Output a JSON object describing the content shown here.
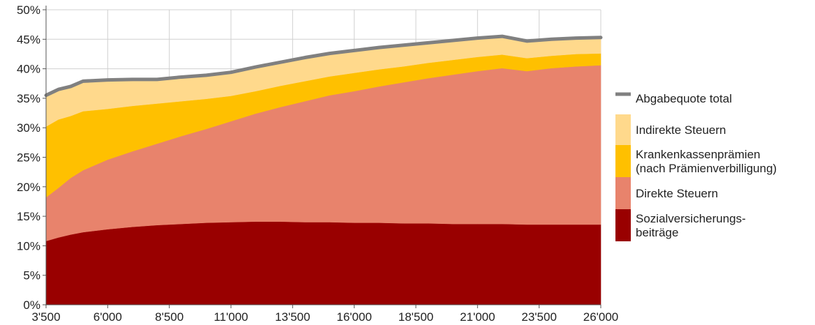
{
  "chart_data": {
    "type": "area",
    "title": "",
    "xlabel": "",
    "ylabel": "",
    "stacked": true,
    "xlim": [
      3500,
      26000
    ],
    "ylim": [
      0,
      50
    ],
    "grid": true,
    "legend_position": "right",
    "x_ticks": [
      "3'500",
      "6'000",
      "8'500",
      "11'000",
      "13'500",
      "16'000",
      "18'500",
      "21'000",
      "23'500",
      "26'000"
    ],
    "y_ticks": [
      "0%",
      "5%",
      "10%",
      "15%",
      "20%",
      "25%",
      "30%",
      "35%",
      "40%",
      "45%",
      "50%"
    ],
    "x": [
      3500,
      4000,
      4500,
      5000,
      6000,
      7000,
      8000,
      9000,
      10000,
      11000,
      12000,
      13000,
      14000,
      15000,
      16000,
      17000,
      18000,
      19000,
      20000,
      21000,
      22000,
      23000,
      24000,
      25000,
      26000
    ],
    "series": [
      {
        "name": "Sozialversicherungs-\nbeiträge",
        "color": "#990000",
        "values": [
          10.8,
          11.4,
          11.9,
          12.3,
          12.8,
          13.2,
          13.5,
          13.7,
          13.9,
          14.0,
          14.1,
          14.1,
          14.0,
          14.0,
          13.9,
          13.9,
          13.8,
          13.8,
          13.7,
          13.7,
          13.7,
          13.6,
          13.6,
          13.6,
          13.6
        ]
      },
      {
        "name": "Direkte Steuern",
        "color": "#e8836c",
        "values": [
          7.4,
          8.4,
          9.6,
          10.5,
          11.8,
          12.8,
          13.8,
          14.9,
          15.9,
          17.1,
          18.3,
          19.4,
          20.5,
          21.5,
          22.3,
          23.1,
          23.9,
          24.6,
          25.3,
          25.9,
          26.4,
          26.0,
          26.5,
          26.8,
          27.0
        ]
      },
      {
        "name": "Krankenkassenprämien\n(nach Prämienverbilligung)",
        "color": "#ffc000",
        "values": [
          12.0,
          11.6,
          10.5,
          10.0,
          8.6,
          7.7,
          6.8,
          5.9,
          5.1,
          4.3,
          3.8,
          3.6,
          3.4,
          3.2,
          3.1,
          2.9,
          2.7,
          2.6,
          2.5,
          2.4,
          2.3,
          2.2,
          2.1,
          2.1,
          2.0
        ]
      },
      {
        "name": "Indirekte Steuern",
        "color": "#ffd98c",
        "values": [
          5.3,
          5.1,
          5.0,
          5.1,
          4.9,
          4.5,
          4.1,
          4.1,
          4.0,
          4.0,
          4.1,
          4.0,
          4.0,
          3.9,
          3.8,
          3.7,
          3.6,
          3.4,
          3.3,
          3.2,
          3.1,
          2.9,
          2.8,
          2.7,
          2.7
        ]
      }
    ],
    "total_line": {
      "name": "Abgabequote total",
      "color": "#808080",
      "values": [
        35.5,
        36.5,
        37.0,
        37.9,
        38.1,
        38.2,
        38.2,
        38.6,
        38.9,
        39.4,
        40.3,
        41.1,
        41.9,
        42.6,
        43.1,
        43.6,
        44.0,
        44.4,
        44.8,
        45.2,
        45.5,
        44.7,
        45.0,
        45.2,
        45.3
      ]
    },
    "legend": [
      {
        "label": "Abgabequote total",
        "kind": "line",
        "color": "#808080"
      },
      {
        "label": "Indirekte Steuern",
        "kind": "swatch",
        "color": "#ffd98c"
      },
      {
        "label": "Krankenkassenprämien\n(nach Prämienverbilligung)",
        "kind": "swatch",
        "color": "#ffc000"
      },
      {
        "label": "Direkte Steuern",
        "kind": "swatch",
        "color": "#e8836c"
      },
      {
        "label": "Sozialversicherungs-\nbeiträge",
        "kind": "swatch",
        "color": "#990000"
      }
    ]
  }
}
